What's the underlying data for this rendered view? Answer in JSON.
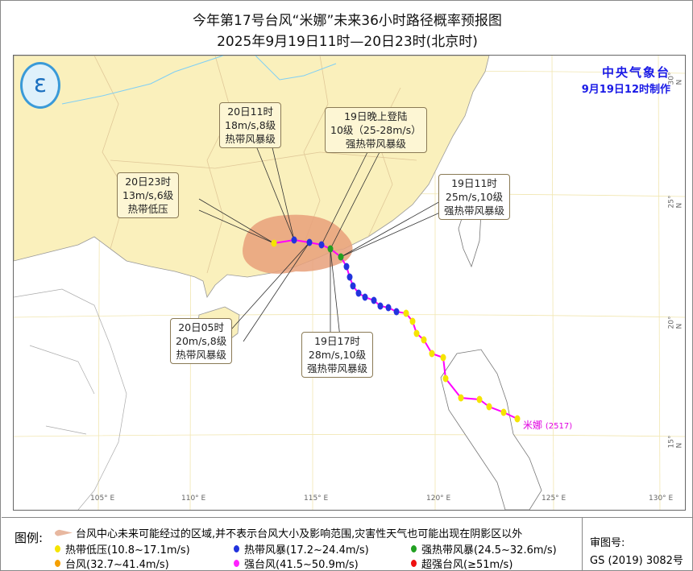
{
  "title": "今年第17号台风“米娜”未来36小时路径概率预报图",
  "subtitle": "2025年9月19日11时—20日23时(北京时)",
  "agency": {
    "name": "中央气象台",
    "made": "9月19日12时制作"
  },
  "typhoon_label": "米娜",
  "typhoon_code": "(2517)",
  "callouts": [
    {
      "time": "20日11时",
      "wind": "18m/s,8级",
      "level": "热带风暴级"
    },
    {
      "time": "19日晚上登陆",
      "wind": "10级（25-28m/s）",
      "level": "强热带风暴级"
    },
    {
      "time": "20日23时",
      "wind": "13m/s,6级",
      "level": "热带低压"
    },
    {
      "time": "19日11时",
      "wind": "25m/s,10级",
      "level": "强热带风暴级"
    },
    {
      "time": "20日05时",
      "wind": "20m/s,8级",
      "level": "热带风暴级"
    },
    {
      "time": "19日17时",
      "wind": "28m/s,10级",
      "level": "强热带风暴级"
    }
  ],
  "lon_ticks": [
    "105° E",
    "110° E",
    "115° E",
    "120° E",
    "125° E",
    "130° E"
  ],
  "lat_ticks": [
    "30° N",
    "25° N",
    "20° N",
    "15° N"
  ],
  "legend": {
    "title": "图例:",
    "cone": "台风中心未来可能经过的区域,并不表示台风大小及影响范围,灾害性天气也可能出现在阴影区以外",
    "items": [
      {
        "label": "热带低压(10.8~17.1m/s)",
        "color": "#f5e400"
      },
      {
        "label": "热带风暴(17.2~24.4m/s)",
        "color": "#2233dd"
      },
      {
        "label": "强热带风暴(24.5~32.6m/s)",
        "color": "#22a022"
      },
      {
        "label": "台风(32.7~41.4m/s)",
        "color": "#f5a000"
      },
      {
        "label": "强台风(41.5~50.9m/s)",
        "color": "#ff22ff"
      },
      {
        "label": "超强台风(≥51m/s)",
        "color": "#ee1111"
      }
    ]
  },
  "review": {
    "label": "审图号:",
    "code": "GS (2019) 3082号"
  },
  "colors": {
    "land_china": "#faf0bc",
    "cone": "#e8a07a",
    "track": "#ff00ff",
    "agency": "#1a1ae6"
  }
}
